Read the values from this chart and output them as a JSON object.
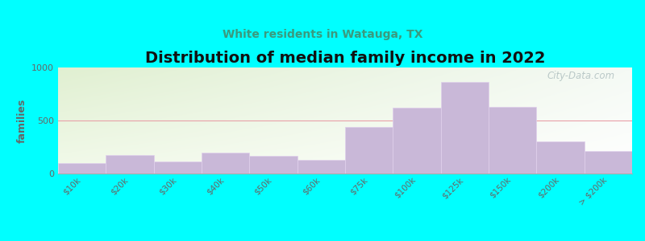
{
  "title": "Distribution of median family income in 2022",
  "subtitle": "White residents in Watauga, TX",
  "ylabel": "families",
  "categories": [
    "$10k",
    "$20k",
    "$30k",
    "$40k",
    "$50k",
    "$60k",
    "$75k",
    "$100k",
    "$125k",
    "$150k",
    "$200k",
    "> $200k"
  ],
  "values": [
    100,
    175,
    110,
    200,
    170,
    130,
    440,
    620,
    860,
    630,
    300,
    210
  ],
  "bar_color": "#c9b8d8",
  "bar_edgecolor": "#e0d0ec",
  "ylim": [
    0,
    1000
  ],
  "yticks": [
    0,
    500,
    1000
  ],
  "background_color": "#00ffff",
  "title_fontsize": 14,
  "subtitle_fontsize": 10,
  "subtitle_color": "#3a9a7e",
  "ylabel_color": "#666666",
  "tick_color": "#666666",
  "watermark_text": "City-Data.com",
  "watermark_color": "#b0c0c0",
  "grid_color": "#e8a0a8",
  "gradient_topleft": [
    0.88,
    0.94,
    0.82
  ],
  "gradient_topright": [
    0.96,
    0.98,
    0.96
  ],
  "gradient_bottomleft": [
    0.95,
    0.98,
    0.92
  ],
  "gradient_bottomright": [
    1.0,
    1.0,
    1.0
  ]
}
